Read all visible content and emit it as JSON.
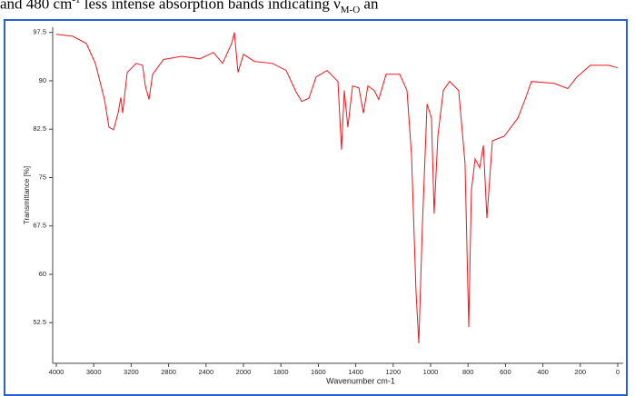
{
  "caption_parts": [
    "and 480 cm",
    "-1",
    " less intense absorption bands indicating ",
    "ν",
    "M-O",
    " an"
  ],
  "chart_data": {
    "type": "line",
    "xlabel": "Wavenumber cm-1",
    "ylabel": "Transmittance [%]",
    "xlim": [
      4000,
      0
    ],
    "xticks": [
      4000,
      3600,
      3200,
      2800,
      2400,
      2000,
      1800,
      1600,
      1400,
      1200,
      1000,
      800,
      600,
      400,
      200,
      0
    ],
    "ylim": [
      46.2,
      98.3
    ],
    "yticks": [
      97.5,
      90,
      82.5,
      75,
      67.5,
      60,
      52.5
    ],
    "x": [
      4000,
      3825,
      3680,
      3583,
      3485,
      3437,
      3388,
      3340,
      3311,
      3291,
      3243,
      3146,
      3078,
      3049,
      3010,
      2971,
      2854,
      2660,
      2466,
      2320,
      2223,
      2126,
      2097,
      2058,
      2000,
      1942,
      1845,
      1772,
      1723,
      1689,
      1650,
      1612,
      1553,
      1495,
      1476,
      1461,
      1442,
      1417,
      1383,
      1359,
      1335,
      1301,
      1277,
      1238,
      1165,
      1126,
      1102,
      1078,
      1063,
      1044,
      1019,
      995,
      981,
      961,
      932,
      898,
      850,
      816,
      796,
      782,
      762,
      738,
      718,
      699,
      670,
      607,
      534,
      495,
      461,
      340,
      267,
      218,
      146,
      49,
      0
    ],
    "series": [
      {
        "color": "#e8191f",
        "values": [
          97.2,
          96.9,
          95.8,
          92.7,
          87.1,
          82.8,
          82.4,
          85,
          87.4,
          85,
          91.3,
          92.7,
          92.4,
          89.2,
          87.1,
          91,
          93.3,
          93.8,
          93.4,
          94.4,
          92.7,
          95.8,
          97.5,
          91.3,
          94.1,
          93,
          92.7,
          91.6,
          88.5,
          86.8,
          87.3,
          90.6,
          91.6,
          89.9,
          79.3,
          88.5,
          82.8,
          89.2,
          88.9,
          85,
          89.2,
          88.5,
          87.1,
          91,
          91,
          88.5,
          78.5,
          57.5,
          49.3,
          67.3,
          86.4,
          84.2,
          69.4,
          81.4,
          88.5,
          89.9,
          88.5,
          77.2,
          51.8,
          73,
          77.9,
          76.5,
          80,
          68.7,
          80.7,
          81.4,
          84.2,
          87.1,
          89.9,
          89.6,
          88.8,
          90.6,
          92.4,
          92.4,
          92
        ]
      }
    ]
  }
}
